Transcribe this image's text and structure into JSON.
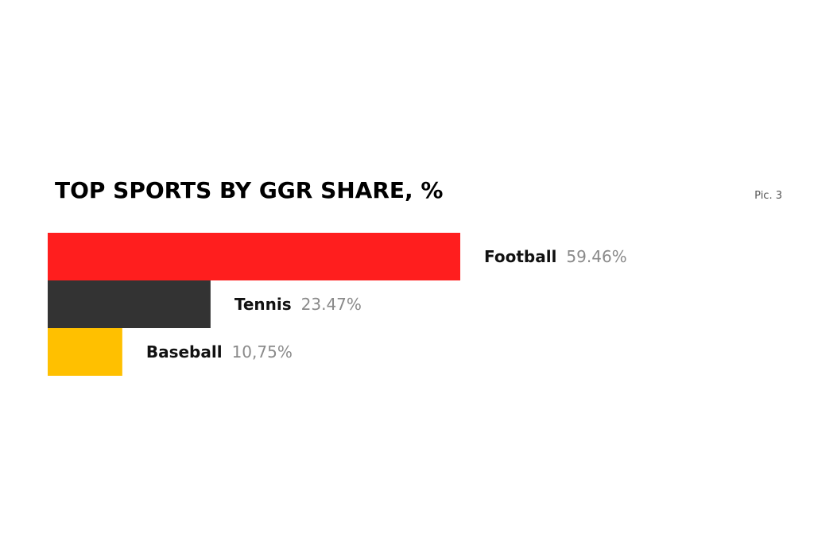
{
  "figure": {
    "pic_label": "Pic. 3"
  },
  "chart_data": {
    "type": "bar",
    "orientation": "horizontal",
    "title": "TOP SPORTS BY GGR SHARE, %",
    "categories": [
      "Football",
      "Tennis",
      "Baseball"
    ],
    "values": [
      59.46,
      23.47,
      10.75
    ],
    "value_labels": [
      "59.46%",
      "23.47%",
      "10,75%"
    ],
    "colors": [
      "#ff1e1e",
      "#333333",
      "#ffc000"
    ],
    "xlabel": "",
    "ylabel": "",
    "xlim": [
      0,
      100
    ],
    "grid": false,
    "legend": "none"
  }
}
